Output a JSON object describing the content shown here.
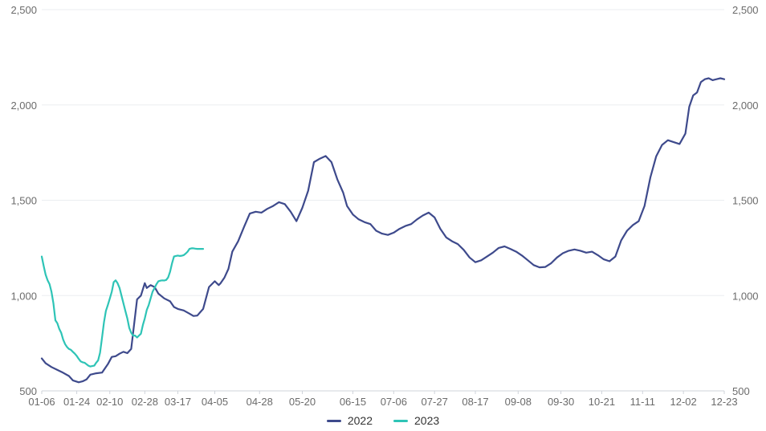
{
  "chart_data": {
    "type": "line",
    "title": "",
    "xlabel": "",
    "ylabel": "",
    "ylim": [
      500,
      2500
    ],
    "y_ticks": [
      500,
      1000,
      1500,
      2000,
      2500
    ],
    "y_tick_labels": [
      "500",
      "1,000",
      "1,500",
      "2,000",
      "2,500"
    ],
    "x_ticks": [
      "01-06",
      "01-24",
      "02-10",
      "02-28",
      "03-17",
      "04-05",
      "04-28",
      "05-20",
      "06-15",
      "07-06",
      "07-27",
      "08-17",
      "09-08",
      "09-30",
      "10-21",
      "11-11",
      "12-02",
      "12-23"
    ],
    "grid": "horizontal",
    "legend_position": "bottom-center",
    "x_domain": [
      "01-06",
      "12-23"
    ],
    "series": [
      {
        "name": "2022",
        "color": "#3e4a8c",
        "x": [
          "01-06",
          "01-08",
          "01-11",
          "01-14",
          "01-17",
          "01-20",
          "01-22",
          "01-25",
          "01-27",
          "01-29",
          "01-31",
          "02-03",
          "02-06",
          "02-09",
          "02-11",
          "02-13",
          "02-15",
          "02-17",
          "02-19",
          "02-21",
          "02-24",
          "02-26",
          "02-28",
          "03-01",
          "03-03",
          "03-05",
          "03-07",
          "03-10",
          "03-13",
          "03-15",
          "03-17",
          "03-20",
          "03-23",
          "03-25",
          "03-27",
          "03-30",
          "04-02",
          "04-05",
          "04-07",
          "04-08",
          "04-10",
          "04-12",
          "04-14",
          "04-17",
          "04-20",
          "04-23",
          "04-26",
          "04-29",
          "05-02",
          "05-05",
          "05-08",
          "05-11",
          "05-14",
          "05-17",
          "05-20",
          "05-23",
          "05-26",
          "05-29",
          "06-01",
          "06-04",
          "06-07",
          "06-10",
          "06-12",
          "06-15",
          "06-18",
          "06-21",
          "06-24",
          "06-27",
          "06-30",
          "07-03",
          "07-06",
          "07-09",
          "07-12",
          "07-15",
          "07-18",
          "07-21",
          "07-24",
          "07-27",
          "07-30",
          "08-02",
          "08-05",
          "08-08",
          "08-11",
          "08-14",
          "08-17",
          "08-20",
          "08-23",
          "08-26",
          "08-29",
          "09-01",
          "09-04",
          "09-07",
          "09-10",
          "09-13",
          "09-16",
          "09-19",
          "09-22",
          "09-25",
          "09-28",
          "10-01",
          "10-04",
          "10-07",
          "10-10",
          "10-13",
          "10-16",
          "10-19",
          "10-22",
          "10-25",
          "10-28",
          "10-31",
          "11-03",
          "11-06",
          "11-09",
          "11-12",
          "11-15",
          "11-18",
          "11-21",
          "11-24",
          "11-27",
          "11-30",
          "12-03",
          "12-05",
          "12-07",
          "12-09",
          "12-11",
          "12-13",
          "12-15",
          "12-17",
          "12-19",
          "12-21",
          "12-23"
        ],
        "values": [
          670,
          645,
          625,
          610,
          595,
          578,
          555,
          545,
          550,
          560,
          585,
          592,
          596,
          640,
          678,
          682,
          695,
          705,
          698,
          720,
          980,
          1000,
          1065,
          1040,
          1055,
          1045,
          1010,
          985,
          970,
          940,
          930,
          922,
          905,
          893,
          895,
          930,
          1045,
          1075,
          1055,
          1065,
          1095,
          1140,
          1230,
          1285,
          1360,
          1430,
          1440,
          1435,
          1455,
          1470,
          1490,
          1480,
          1440,
          1390,
          1460,
          1550,
          1700,
          1718,
          1732,
          1700,
          1610,
          1540,
          1470,
          1425,
          1400,
          1385,
          1375,
          1340,
          1325,
          1318,
          1330,
          1350,
          1365,
          1375,
          1400,
          1420,
          1435,
          1410,
          1350,
          1305,
          1285,
          1270,
          1240,
          1200,
          1175,
          1185,
          1205,
          1225,
          1250,
          1258,
          1245,
          1230,
          1210,
          1185,
          1160,
          1148,
          1150,
          1170,
          1200,
          1222,
          1235,
          1242,
          1235,
          1225,
          1230,
          1212,
          1190,
          1180,
          1205,
          1290,
          1340,
          1370,
          1390,
          1470,
          1620,
          1730,
          1790,
          1815,
          1805,
          1795,
          1850,
          1990,
          2050,
          2065,
          2120,
          2135,
          2140,
          2130,
          2135,
          2140,
          2135
        ]
      },
      {
        "name": "2023",
        "color": "#2ec4b6",
        "x": [
          "01-06",
          "01-07",
          "01-08",
          "01-09",
          "01-10",
          "01-11",
          "01-12",
          "01-13",
          "01-14",
          "01-15",
          "01-16",
          "01-17",
          "01-18",
          "01-19",
          "01-20",
          "01-21",
          "01-22",
          "01-23",
          "01-24",
          "01-25",
          "01-26",
          "01-27",
          "01-28",
          "01-29",
          "01-30",
          "01-31",
          "02-01",
          "02-02",
          "02-03",
          "02-04",
          "02-05",
          "02-06",
          "02-07",
          "02-08",
          "02-09",
          "02-10",
          "02-11",
          "02-12",
          "02-13",
          "02-14",
          "02-15",
          "02-16",
          "02-17",
          "02-18",
          "02-19",
          "02-20",
          "02-21",
          "02-22",
          "02-23",
          "02-24",
          "02-25",
          "02-26",
          "02-27",
          "02-28",
          "03-01",
          "03-02",
          "03-03",
          "03-04",
          "03-05",
          "03-06",
          "03-07",
          "03-08",
          "03-09",
          "03-10",
          "03-11",
          "03-12",
          "03-13",
          "03-14",
          "03-15",
          "03-16",
          "03-17",
          "03-18",
          "03-19",
          "03-20",
          "03-21",
          "03-22",
          "03-23",
          "03-24",
          "03-25",
          "03-26",
          "03-27",
          "03-28",
          "03-29",
          "03-30"
        ],
        "values": [
          1205,
          1155,
          1110,
          1080,
          1060,
          1020,
          960,
          870,
          855,
          825,
          805,
          770,
          745,
          730,
          720,
          715,
          705,
          695,
          683,
          668,
          655,
          650,
          648,
          640,
          632,
          628,
          630,
          632,
          648,
          660,
          700,
          780,
          860,
          920,
          950,
          985,
          1020,
          1070,
          1080,
          1065,
          1040,
          1000,
          960,
          920,
          880,
          830,
          805,
          790,
          790,
          780,
          790,
          800,
          845,
          880,
          925,
          950,
          985,
          1020,
          1040,
          1060,
          1075,
          1078,
          1080,
          1079,
          1082,
          1095,
          1125,
          1170,
          1205,
          1208,
          1210,
          1208,
          1209,
          1212,
          1220,
          1230,
          1245,
          1248,
          1248,
          1246,
          1245,
          1245,
          1245,
          1245
        ]
      }
    ]
  }
}
